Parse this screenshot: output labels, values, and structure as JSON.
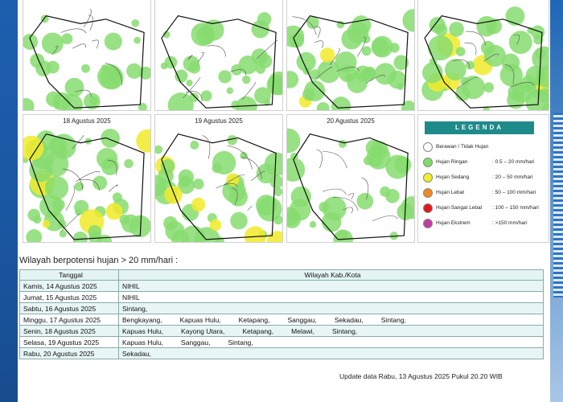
{
  "maps": {
    "dates": [
      "",
      "",
      "",
      "",
      "18 Agustus 2025",
      "19 Agustus 2025",
      "20 Agustus 2025"
    ]
  },
  "legend": {
    "title": "LEGENDA",
    "items": [
      {
        "name": "Berawan / Tidak Hujan",
        "range": "",
        "color": "#ffffff"
      },
      {
        "name": "Hujan Ringan",
        "range": ": 0.5 – 20 mm/hari",
        "color": "#7fdc6a"
      },
      {
        "name": "Hujan Sedang",
        "range": ": 20 – 50 mm/hari",
        "color": "#f2ef2a"
      },
      {
        "name": "Hujan Lebat",
        "range": ": 50 – 100 mm/hari",
        "color": "#ef8a23"
      },
      {
        "name": "Hujan Sangat Lebat",
        "range": ": 100 – 150 mm/hari",
        "color": "#e0191b"
      },
      {
        "name": "Hujan Ekstrem",
        "range": ": >150 mm/hari",
        "color": "#c23aa6"
      }
    ]
  },
  "section_title": "Wilayah berpotensi hujan > 20 mm/hari :",
  "table": {
    "headers": [
      "Tanggal",
      "Wilayah Kab./Kota"
    ],
    "rows": [
      {
        "date": "Kamis, 14 Agustus 2025",
        "regions": [
          "NIHIL"
        ]
      },
      {
        "date": "Jumat, 15 Agustus 2025",
        "regions": [
          "NIHIL"
        ]
      },
      {
        "date": "Sabtu, 16 Agustus 2025",
        "regions": [
          "Sintang,"
        ]
      },
      {
        "date": "Minggu, 17 Agustus 2025",
        "regions": [
          "Bengkayang,",
          "Kapuas Hulu,",
          "Ketapang,",
          "Sanggau,",
          "Sekadau,",
          "Sintang,"
        ]
      },
      {
        "date": "Senin, 18 Agustus 2025",
        "regions": [
          "Kapuas Hulu,",
          "Kayong Utara,",
          "Ketapang,",
          "Melawi,",
          "Sintang,"
        ]
      },
      {
        "date": "Selasa, 19 Agustus 2025",
        "regions": [
          "Kapuas Hulu,",
          "Sanggau,",
          "Sintang,"
        ]
      },
      {
        "date": "Rabu, 20 Agustus 2025",
        "regions": [
          "Sekadau,"
        ]
      }
    ]
  },
  "update_text": "Update data Rabu, 13 Agustus 2025 Pukul 20.20 WIB"
}
